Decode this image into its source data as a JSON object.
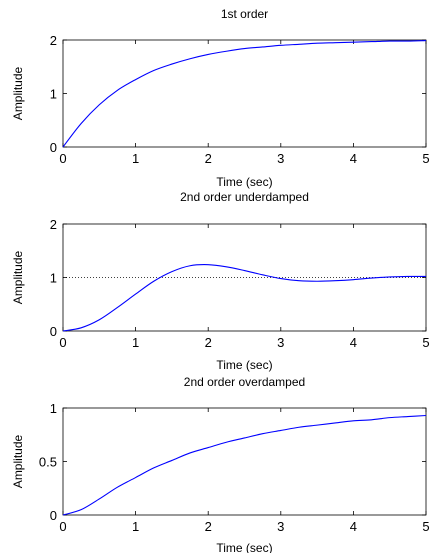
{
  "chart_data": [
    {
      "type": "line",
      "title": "1st order",
      "xlabel": "Time (sec)",
      "ylabel": "Amplitude",
      "xlim": [
        0,
        5
      ],
      "ylim": [
        0,
        2
      ],
      "xticks": [
        "0",
        "1",
        "2",
        "3",
        "4",
        "5"
      ],
      "yticks": [
        "0",
        "1",
        "2"
      ],
      "grid": false,
      "series": [
        {
          "color": "#0000ff",
          "x": [
            0,
            0.25,
            0.5,
            0.75,
            1.0,
            1.25,
            1.5,
            1.75,
            2.0,
            2.25,
            2.5,
            2.75,
            3.0,
            3.25,
            3.5,
            3.75,
            4.0,
            4.25,
            4.5,
            4.75,
            5.0
          ],
          "y": [
            0,
            0.44,
            0.79,
            1.06,
            1.26,
            1.43,
            1.55,
            1.65,
            1.73,
            1.79,
            1.84,
            1.87,
            1.9,
            1.92,
            1.94,
            1.95,
            1.96,
            1.97,
            1.98,
            1.98,
            1.99
          ]
        }
      ]
    },
    {
      "type": "line",
      "title": "2nd order underdamped",
      "xlabel": "Time (sec)",
      "ylabel": "Amplitude",
      "xlim": [
        0,
        5
      ],
      "ylim": [
        0,
        2
      ],
      "xticks": [
        "0",
        "1",
        "2",
        "3",
        "4",
        "5"
      ],
      "yticks": [
        "0",
        "1",
        "2"
      ],
      "grid": false,
      "reference_line": {
        "y": 1,
        "style": "dotted",
        "color": "#000000"
      },
      "series": [
        {
          "color": "#0000ff",
          "x": [
            0,
            0.25,
            0.5,
            0.75,
            1.0,
            1.25,
            1.5,
            1.75,
            2.0,
            2.25,
            2.5,
            2.75,
            3.0,
            3.25,
            3.5,
            3.75,
            4.0,
            4.25,
            4.5,
            4.75,
            5.0
          ],
          "y": [
            0,
            0.06,
            0.21,
            0.44,
            0.69,
            0.93,
            1.11,
            1.22,
            1.24,
            1.2,
            1.13,
            1.05,
            0.98,
            0.94,
            0.93,
            0.94,
            0.96,
            0.99,
            1.01,
            1.02,
            1.02
          ]
        }
      ]
    },
    {
      "type": "line",
      "title": "2nd order overdamped",
      "xlabel": "Time (sec)",
      "ylabel": "Amplitude",
      "xlim": [
        0,
        5
      ],
      "ylim": [
        0,
        1
      ],
      "xticks": [
        "0",
        "1",
        "2",
        "3",
        "4",
        "5"
      ],
      "yticks": [
        "0",
        "0.5",
        "1"
      ],
      "grid": false,
      "series": [
        {
          "color": "#0000ff",
          "x": [
            0,
            0.25,
            0.5,
            0.75,
            1.0,
            1.25,
            1.5,
            1.75,
            2.0,
            2.25,
            2.5,
            2.75,
            3.0,
            3.25,
            3.5,
            3.75,
            4.0,
            4.25,
            4.5,
            4.75,
            5.0
          ],
          "y": [
            0,
            0.05,
            0.15,
            0.26,
            0.35,
            0.44,
            0.51,
            0.58,
            0.63,
            0.68,
            0.72,
            0.76,
            0.79,
            0.82,
            0.84,
            0.86,
            0.88,
            0.89,
            0.91,
            0.92,
            0.93
          ]
        }
      ]
    }
  ]
}
